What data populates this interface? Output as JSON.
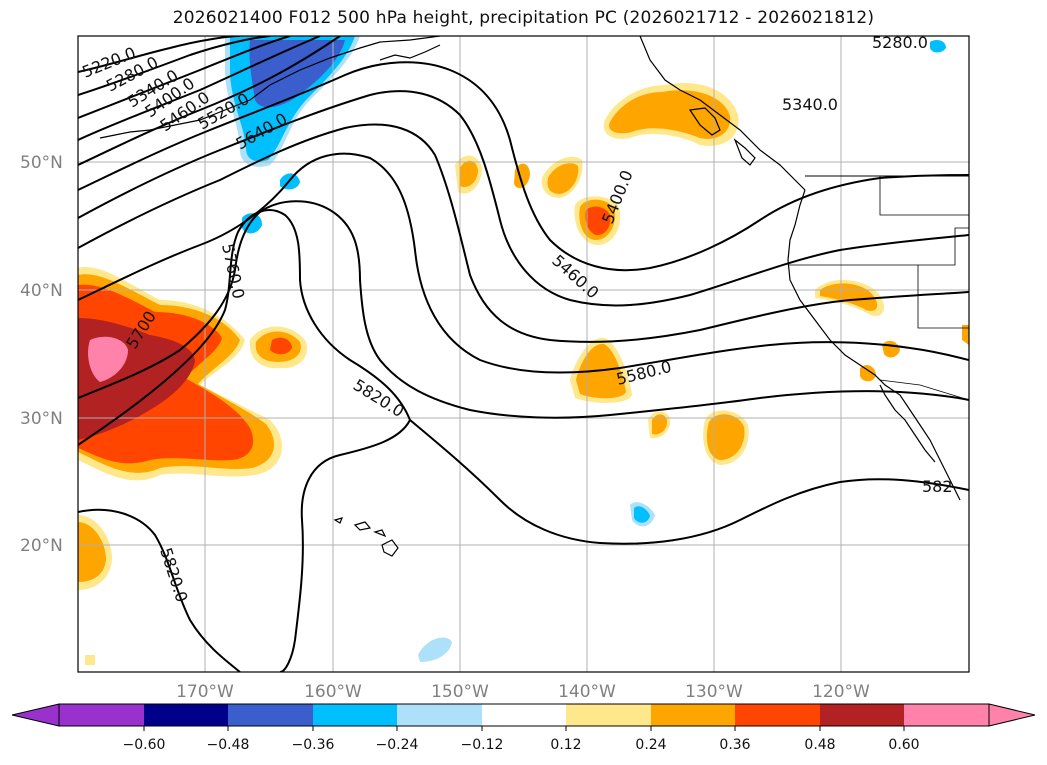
{
  "title": "2026021400 F012 500 hPa height, precipitation PC (2026021712 - 2026021812)",
  "map": {
    "lat_labels": [
      "50°N",
      "40°N",
      "30°N",
      "20°N"
    ],
    "lon_labels": [
      "170°W",
      "160°W",
      "150°W",
      "140°W",
      "130°W",
      "120°W"
    ],
    "contour_labels": [
      "5220.0",
      "5280.0",
      "5340.0",
      "5400.0",
      "5460.0",
      "5520.0",
      "5640.0",
      "5760.0",
      "5700",
      "5820.0",
      "5460.0",
      "5400.0",
      "5580.0",
      "5340.0",
      "5280.0",
      "5820.0",
      "582"
    ],
    "ocean_color": "#ffffff",
    "contour_color": "#000000"
  },
  "colorbar": {
    "ticks": [
      "−0.60",
      "−0.48",
      "−0.36",
      "−0.24",
      "−0.12",
      "0.12",
      "0.24",
      "0.36",
      "0.48",
      "0.60"
    ],
    "colors": [
      "#9932CC",
      "#00008B",
      "#3A5FCD",
      "#00BFFF",
      "#ADE1FA",
      "#FFFFFF",
      "#FFE88C",
      "#FFA500",
      "#FF4500",
      "#B22222",
      "#FF82AB"
    ]
  }
}
